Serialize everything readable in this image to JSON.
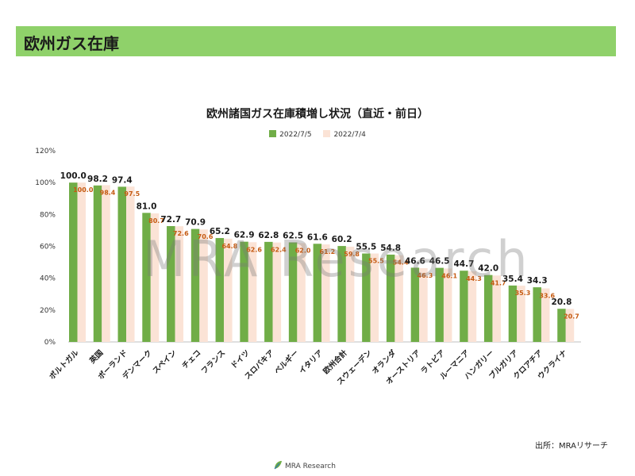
{
  "header": {
    "title": "欧州ガス在庫"
  },
  "watermark": "MRA Research",
  "source": "出所：MRAリサーチ",
  "footer": {
    "logo_text": "MRA Research"
  },
  "colors": {
    "current": "#70ad47",
    "previous": "#fbe3d6",
    "prev_label": "#c55a11",
    "header": "#8fd16a"
  },
  "chart_data": {
    "type": "bar",
    "title": "欧州諸国ガス在庫積増し状況（直近・前日）",
    "legend_position": "top",
    "y_unit": "%",
    "ylim": [
      0,
      120
    ],
    "yticks": [
      "0%",
      "20%",
      "40%",
      "60%",
      "80%",
      "100%",
      "120%"
    ],
    "yticks_values": [
      0,
      20,
      40,
      60,
      80,
      100,
      120
    ],
    "categories": [
      "ポルトガル",
      "英国",
      "ポーランド",
      "デンマーク",
      "スペイン",
      "チェコ",
      "フランス",
      "ドイツ",
      "スロバキア",
      "ベルギー",
      "イタリア",
      "欧州合計",
      "スウェーデン",
      "オランダ",
      "オーストリア",
      "ラトビア",
      "ルーマニア",
      "ハンガリー",
      "ブルガリア",
      "クロアチア",
      "ウクライナ"
    ],
    "series": [
      {
        "name": "2022/7/5",
        "values": [
          100.0,
          98.2,
          97.4,
          81.0,
          72.7,
          70.9,
          65.2,
          62.9,
          62.8,
          62.5,
          61.6,
          60.2,
          55.5,
          54.8,
          46.6,
          46.5,
          44.7,
          42.0,
          35.4,
          34.3,
          20.8
        ],
        "labels": [
          "100.0",
          "98.2",
          "97.4",
          "81.0",
          "72.7",
          "70.9",
          "65.2",
          "62.9",
          "62.8",
          "62.5",
          "61.6",
          "60.2",
          "55.5",
          "54.8",
          "46.6",
          "46.5",
          "44.7",
          "42.0",
          "35.4",
          "34.3",
          "20.8"
        ]
      },
      {
        "name": "2022/7/4",
        "values": [
          100.0,
          98.4,
          97.5,
          80.7,
          72.6,
          70.6,
          64.8,
          62.6,
          62.4,
          62.0,
          61.2,
          59.8,
          55.5,
          54.4,
          46.3,
          46.1,
          44.3,
          41.7,
          35.3,
          33.6,
          20.7
        ],
        "labels": [
          "100.0",
          "98.4",
          "97.5",
          "80.7",
          "72.6",
          "70.6",
          "64.8",
          "62.6",
          "62.4",
          "62.0",
          "61.2",
          "59.8",
          "55.5",
          "54.4",
          "46.3",
          "46.1",
          "44.3",
          "41.7",
          "35.3",
          "33.6",
          "20.7"
        ]
      }
    ]
  }
}
